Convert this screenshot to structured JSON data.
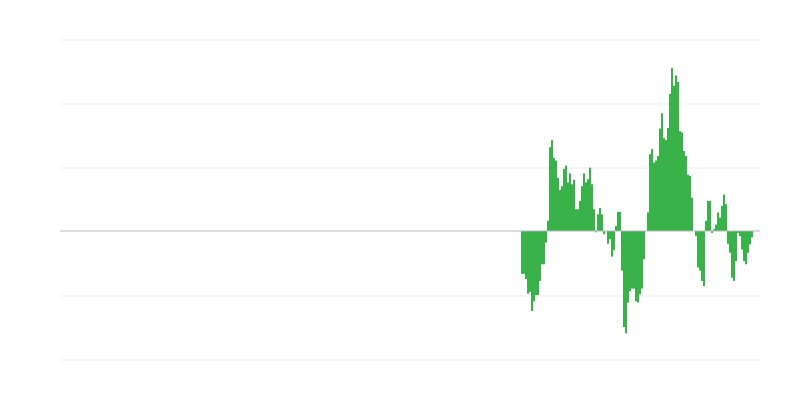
{
  "chart_data": {
    "type": "bar",
    "title": "",
    "xlabel": "",
    "ylabel": "",
    "ylim": [
      -2,
      3
    ],
    "grid": true,
    "legend": "none",
    "colors": {
      "bar": "#39b24a",
      "grid": "#ececec",
      "baseline": "#b8b8b8"
    },
    "values": [
      -0.67,
      -0.67,
      -0.75,
      -0.98,
      -0.95,
      -1.25,
      -1.1,
      -1.0,
      -1.0,
      -0.78,
      -0.52,
      -0.52,
      -0.18,
      0.16,
      1.31,
      1.42,
      1.14,
      1.1,
      0.83,
      0.64,
      0.7,
      0.97,
      1.02,
      0.76,
      0.9,
      0.73,
      0.8,
      0.34,
      0.34,
      0.47,
      0.7,
      0.9,
      0.76,
      0.81,
      0.99,
      0.73,
      0.34,
      -0.02,
      0.26,
      0.36,
      0.26,
      -0.05,
      0,
      -0.2,
      -0.13,
      -0.4,
      -0.3,
      0.08,
      0.3,
      0.3,
      -0.62,
      -1.5,
      -1.6,
      -1.12,
      -0.94,
      -0.9,
      -0.9,
      -1.1,
      -1.12,
      -0.99,
      -0.9,
      -0.44,
      0,
      0.29,
      1.2,
      1.28,
      1.07,
      1.1,
      1.17,
      1.6,
      1.84,
      1.45,
      1.42,
      1.61,
      2.14,
      2.55,
      2.27,
      2.43,
      2.33,
      1.56,
      1.54,
      1.25,
      1.17,
      0.88,
      0.86,
      0.52,
      0,
      -0.08,
      -0.57,
      -0.62,
      -0.78,
      -0.86,
      0.16,
      0.47,
      0.47,
      -0.03,
      0.03,
      0.1,
      0.29,
      0.21,
      0.39,
      0.57,
      0.42,
      -0.2,
      -0.34,
      -0.73,
      -0.78,
      -0.47,
      -0.03,
      -0.08,
      -0.29,
      -0.47,
      -0.52,
      -0.34,
      -0.21,
      -0.1
    ]
  }
}
